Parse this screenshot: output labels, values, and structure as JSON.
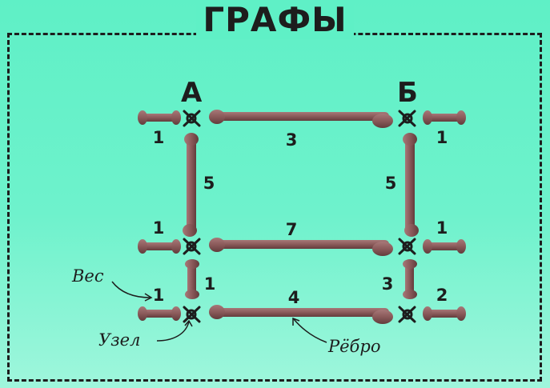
{
  "title": "ГРАФЫ",
  "nodes": {
    "a_label": "А",
    "b_label": "Б"
  },
  "edge_weights": {
    "top_horizontal": "3",
    "middle_horizontal": "7",
    "bottom_horizontal": "4",
    "left_vertical_upper": "5",
    "right_vertical_upper": "5",
    "left_vertical_lower": "1",
    "right_vertical_lower": "3",
    "left_stub_top": "1",
    "left_stub_middle": "1",
    "left_stub_bottom": "1",
    "right_stub_top": "1",
    "right_stub_middle": "1",
    "right_stub_bottom": "2"
  },
  "annotations": {
    "weight": "Вес",
    "node": "Узел",
    "edge": "Рёбро"
  },
  "colors": {
    "background": "#5ff0c6",
    "bone": "#8a5a5a",
    "ink": "#1d1d1d"
  }
}
